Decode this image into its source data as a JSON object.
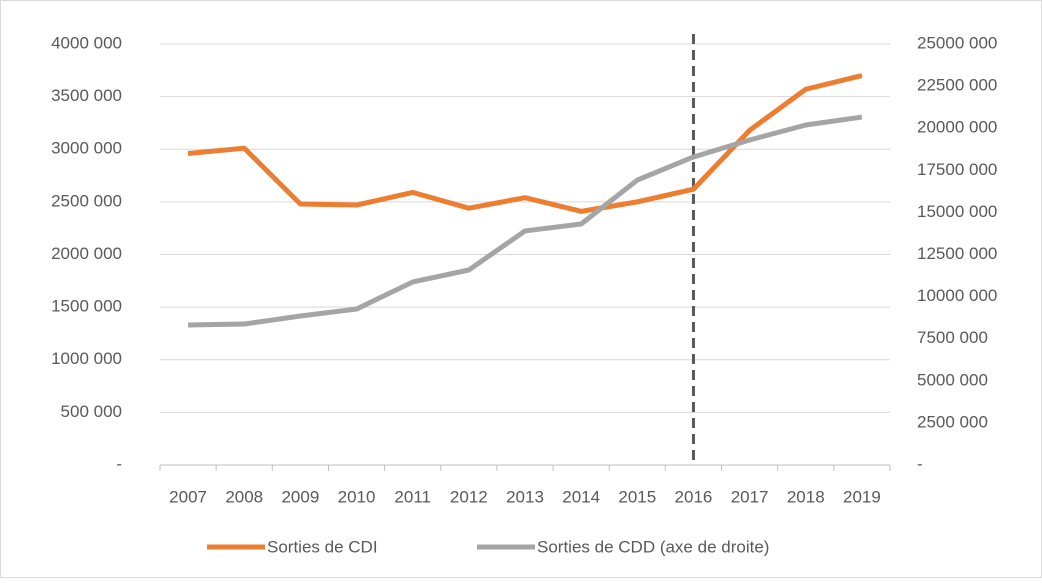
{
  "chart_data": {
    "type": "line",
    "categories": [
      "2007",
      "2008",
      "2009",
      "2010",
      "2011",
      "2012",
      "2013",
      "2014",
      "2015",
      "2016",
      "2017",
      "2018",
      "2019"
    ],
    "series": [
      {
        "name": "Sorties de CDI",
        "color": "#ed7d31",
        "values": [
          2960000,
          3010000,
          2480000,
          2470000,
          2590000,
          2440000,
          2540000,
          2410000,
          2500000,
          2620000,
          3180000,
          3570000,
          3700000
        ]
      },
      {
        "name": "Sorties de CDD (axe de droite)",
        "color": "#a5a5a5",
        "axis": "y2",
        "values": [
          8310000,
          8370000,
          8850000,
          9260000,
          10870000,
          11580000,
          13900000,
          14310000,
          16920000,
          18290000,
          19300000,
          20190000,
          20660000
        ]
      }
    ],
    "ylim": [
      0,
      4000000
    ],
    "yticks": [
      {
        "value": 0,
        "label": "-"
      },
      {
        "value": 500000,
        "label": "500 000"
      },
      {
        "value": 1000000,
        "label": "1000 000"
      },
      {
        "value": 1500000,
        "label": "1500 000"
      },
      {
        "value": 2000000,
        "label": "2000 000"
      },
      {
        "value": 2500000,
        "label": "2500 000"
      },
      {
        "value": 3000000,
        "label": "3000 000"
      },
      {
        "value": 3500000,
        "label": "3500 000"
      },
      {
        "value": 4000000,
        "label": "4000 000"
      }
    ],
    "y2lim": [
      0,
      25000000
    ],
    "y2ticks": [
      {
        "value": 0,
        "label": "-"
      },
      {
        "value": 2500000,
        "label": "2500 000"
      },
      {
        "value": 5000000,
        "label": "5000 000"
      },
      {
        "value": 7500000,
        "label": "7500 000"
      },
      {
        "value": 10000000,
        "label": "10000 000"
      },
      {
        "value": 12500000,
        "label": "12500 000"
      },
      {
        "value": 15000000,
        "label": "15000 000"
      },
      {
        "value": 17500000,
        "label": "17500 000"
      },
      {
        "value": 20000000,
        "label": "20000 000"
      },
      {
        "value": 22500000,
        "label": "22500 000"
      },
      {
        "value": 25000000,
        "label": "25000 000"
      }
    ],
    "grid": true,
    "legend": "bottom",
    "vline_at": "2016"
  }
}
